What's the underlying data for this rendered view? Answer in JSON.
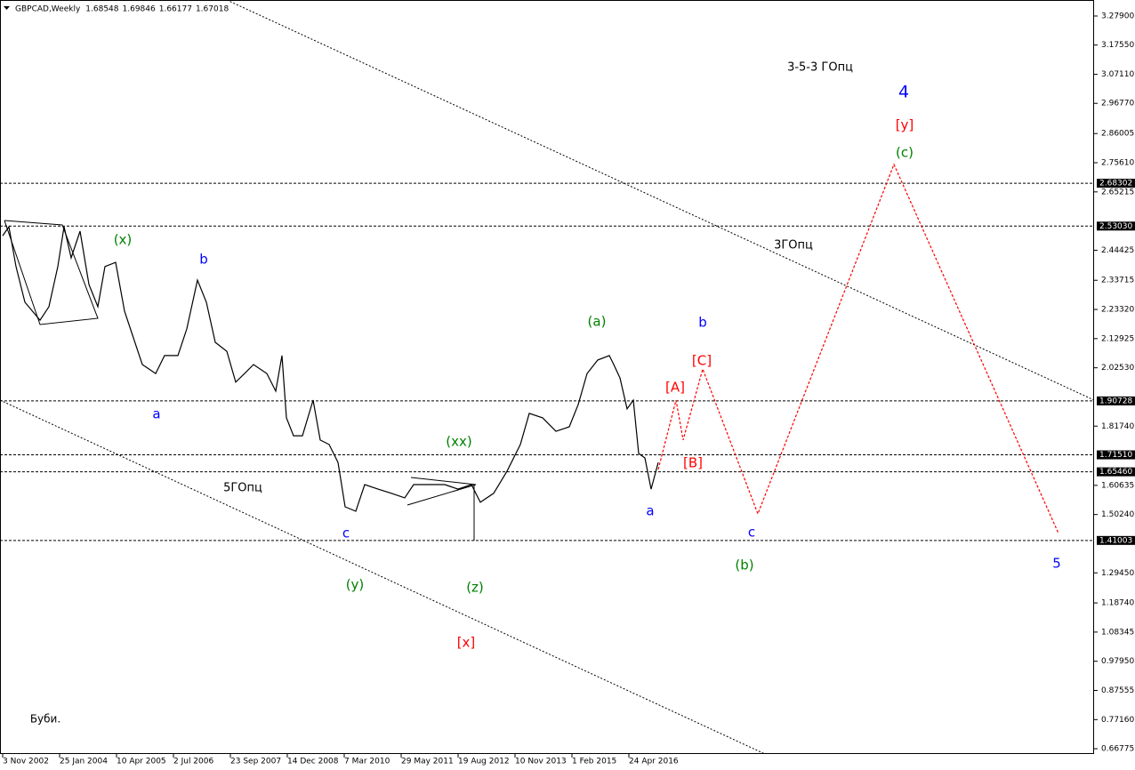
{
  "chart_data": {
    "type": "line",
    "symbol": "GBPCAD,Weekly",
    "ohlc": [
      1.68548,
      1.69846,
      1.66177,
      1.67018
    ],
    "xlim": [
      -3,
      1227
    ],
    "ylim": [
      0.649,
      3.336
    ],
    "xticks": [
      {
        "value": 0,
        "label": "3 Nov 2002"
      },
      {
        "value": 64,
        "label": "25 Jan 2004"
      },
      {
        "value": 128,
        "label": "10 Apr 2005"
      },
      {
        "value": 192,
        "label": "2 Jul 2006"
      },
      {
        "value": 256,
        "label": "23 Sep 2007"
      },
      {
        "value": 320,
        "label": "14 Dec 2008"
      },
      {
        "value": 384,
        "label": "7 Mar 2010"
      },
      {
        "value": 448,
        "label": "29 May 2011"
      },
      {
        "value": 512,
        "label": "19 Aug 2012"
      },
      {
        "value": 576,
        "label": "10 Nov 2013"
      },
      {
        "value": 640,
        "label": "1 Feb 2015"
      },
      {
        "value": 704,
        "label": "24 Apr 2016"
      }
    ],
    "yticks": [
      {
        "value": 3.279,
        "label": "3.27900"
      },
      {
        "value": 3.1755,
        "label": "3.17550"
      },
      {
        "value": 3.0711,
        "label": "3.07110"
      },
      {
        "value": 2.9677,
        "label": "2.96770"
      },
      {
        "value": 2.86005,
        "label": "2.86005"
      },
      {
        "value": 2.7561,
        "label": "2.75610"
      },
      {
        "value": 2.65215,
        "label": "2.65215"
      },
      {
        "value": 2.44425,
        "label": "2.44425"
      },
      {
        "value": 2.33715,
        "label": "2.33715"
      },
      {
        "value": 2.2332,
        "label": "2.23320"
      },
      {
        "value": 2.12925,
        "label": "2.12925"
      },
      {
        "value": 2.0253,
        "label": "2.02530"
      },
      {
        "value": 1.8174,
        "label": "1.81740"
      },
      {
        "value": 1.60635,
        "label": "1.60635"
      },
      {
        "value": 1.5024,
        "label": "1.50240"
      },
      {
        "value": 1.2945,
        "label": "1.29450"
      },
      {
        "value": 1.1874,
        "label": "1.18740"
      },
      {
        "value": 1.08345,
        "label": "1.08345"
      },
      {
        "value": 0.9795,
        "label": "0.97950"
      },
      {
        "value": 0.87555,
        "label": "0.87555"
      },
      {
        "value": 0.7716,
        "label": "0.77160"
      },
      {
        "value": 0.66775,
        "label": "0.66775"
      }
    ],
    "levels": [
      {
        "value": 2.68302,
        "label": "2.68302"
      },
      {
        "value": 2.5303,
        "label": "2.53030"
      },
      {
        "value": 1.90728,
        "label": "1.90728"
      },
      {
        "value": 1.7151,
        "label": "1.71510"
      },
      {
        "value": 1.6546,
        "label": "1.65460"
      },
      {
        "value": 1.41003,
        "label": "1.41003"
      }
    ],
    "x": [
      0,
      7,
      15,
      25,
      42,
      52,
      62,
      69,
      77,
      87,
      97,
      107,
      115,
      127,
      137,
      147,
      157,
      172,
      182,
      197,
      207,
      219,
      229,
      239,
      252,
      262,
      272,
      282,
      297,
      307,
      314,
      319,
      327,
      337,
      349,
      357,
      367,
      377,
      385,
      397,
      407,
      422,
      437,
      452,
      462,
      477,
      497,
      512,
      527,
      537,
      552,
      567,
      582,
      592,
      607,
      622,
      637,
      647,
      657,
      669,
      682,
      687,
      694,
      702,
      709,
      715,
      722,
      729,
      737
    ],
    "series": [
      {
        "color": "#000000",
        "values": [
          2.496,
          2.528,
          2.386,
          2.259,
          2.195,
          2.243,
          2.386,
          2.528,
          2.417,
          2.512,
          2.322,
          2.243,
          2.386,
          2.401,
          2.227,
          2.132,
          2.037,
          2.005,
          2.069,
          2.069,
          2.164,
          2.338,
          2.259,
          2.116,
          2.084,
          1.974,
          2.005,
          2.037,
          2.005,
          1.942,
          2.069,
          1.847,
          1.783,
          1.783,
          1.91,
          1.768,
          1.752,
          1.688,
          1.53,
          1.514,
          1.609,
          1.593,
          1.578,
          1.562,
          1.609,
          1.609,
          1.609,
          1.593,
          1.609,
          1.546,
          1.578,
          1.657,
          1.752,
          1.863,
          1.847,
          1.799,
          1.815,
          1.894,
          2.005,
          2.053,
          2.069,
          2.037,
          1.989,
          1.879,
          1.91,
          1.72,
          1.704,
          1.593,
          1.688
        ]
      }
    ],
    "projection": {
      "color": "#ff0000",
      "x": [
        737,
        757,
        765,
        787,
        849,
        1002,
        1187
      ],
      "values": [
        1.663,
        1.91,
        1.768,
        2.021,
        1.505,
        2.75,
        1.435
      ]
    },
    "annotations": [
      {
        "text": "(x)",
        "color": "#008000"
      },
      {
        "text": "b",
        "color": "#0000ff"
      },
      {
        "text": "a",
        "color": "#0000ff"
      },
      {
        "text": "c",
        "color": "#0000ff"
      },
      {
        "text": "(y)",
        "color": "#008000"
      },
      {
        "text": "(xx)",
        "color": "#008000"
      },
      {
        "text": "(z)",
        "color": "#008000"
      },
      {
        "text": "[x]",
        "color": "#ff0000"
      },
      {
        "text": "5ГОпц",
        "color": "#000000"
      },
      {
        "text": "(a)",
        "color": "#008000"
      },
      {
        "text": "b",
        "color": "#0000ff"
      },
      {
        "text": "[A]",
        "color": "#ff0000"
      },
      {
        "text": "[C]",
        "color": "#ff0000"
      },
      {
        "text": "[B]",
        "color": "#ff0000"
      },
      {
        "text": "a",
        "color": "#0000ff"
      },
      {
        "text": "c",
        "color": "#0000ff"
      },
      {
        "text": "(b)",
        "color": "#008000"
      },
      {
        "text": "3-5-3 ГОпц",
        "color": "#000000"
      },
      {
        "text": "4",
        "color": "#0000ff"
      },
      {
        "text": "[y]",
        "color": "#ff0000"
      },
      {
        "text": "(c)",
        "color": "#008000"
      },
      {
        "text": "3ГОпц",
        "color": "#000000"
      },
      {
        "text": "5",
        "color": "#0000ff"
      },
      {
        "text": "Буби.",
        "color": "#000000"
      }
    ]
  }
}
